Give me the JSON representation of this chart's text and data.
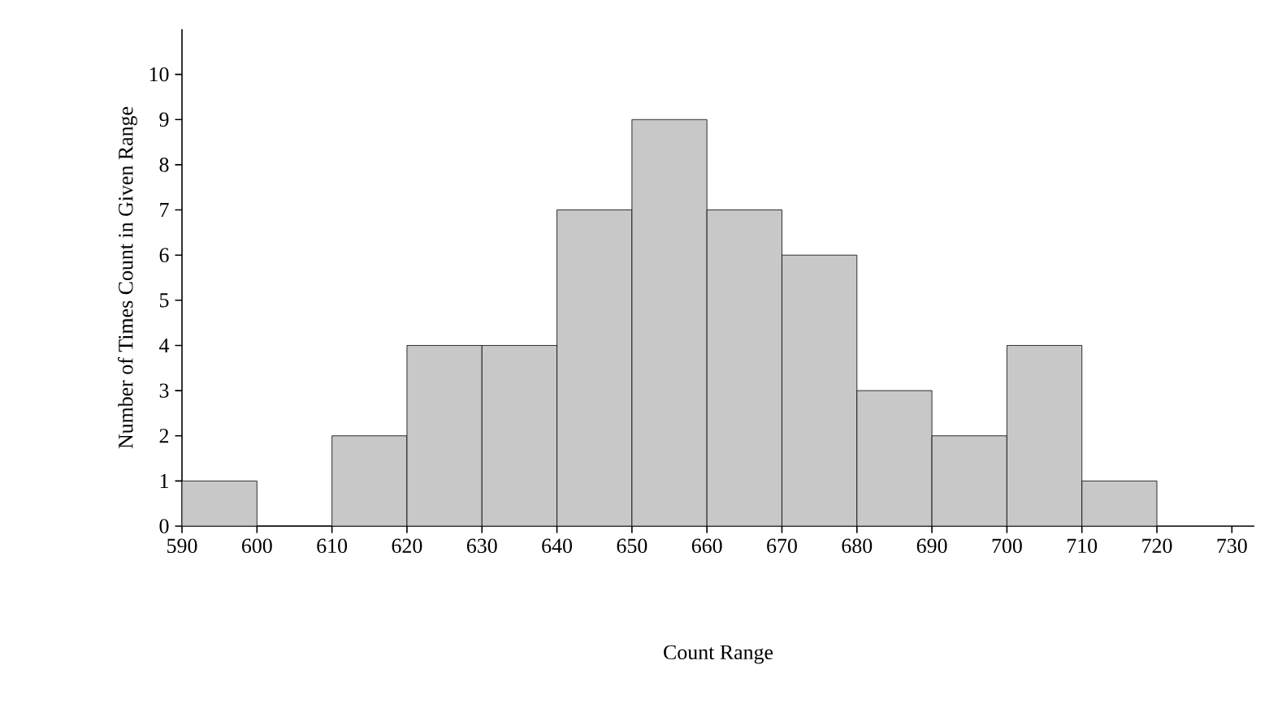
{
  "chart_data": {
    "type": "histogram",
    "xlabel": "Count Range",
    "ylabel": "Number of Times Count in Given Range",
    "bins": [
      590,
      600,
      610,
      620,
      630,
      640,
      650,
      660,
      670,
      680,
      690,
      700,
      710,
      720
    ],
    "values": [
      1,
      0,
      2,
      4,
      4,
      7,
      9,
      7,
      6,
      3,
      2,
      4,
      1
    ],
    "color": "#c8c8c8",
    "xlim": [
      590,
      733
    ],
    "ylim": [
      0,
      11
    ],
    "xticks": [
      590,
      600,
      610,
      620,
      630,
      640,
      650,
      660,
      670,
      680,
      690,
      700,
      710,
      720,
      730
    ],
    "yticks": [
      0,
      1,
      2,
      3,
      4,
      5,
      6,
      7,
      8,
      9,
      10
    ],
    "grid": false
  }
}
